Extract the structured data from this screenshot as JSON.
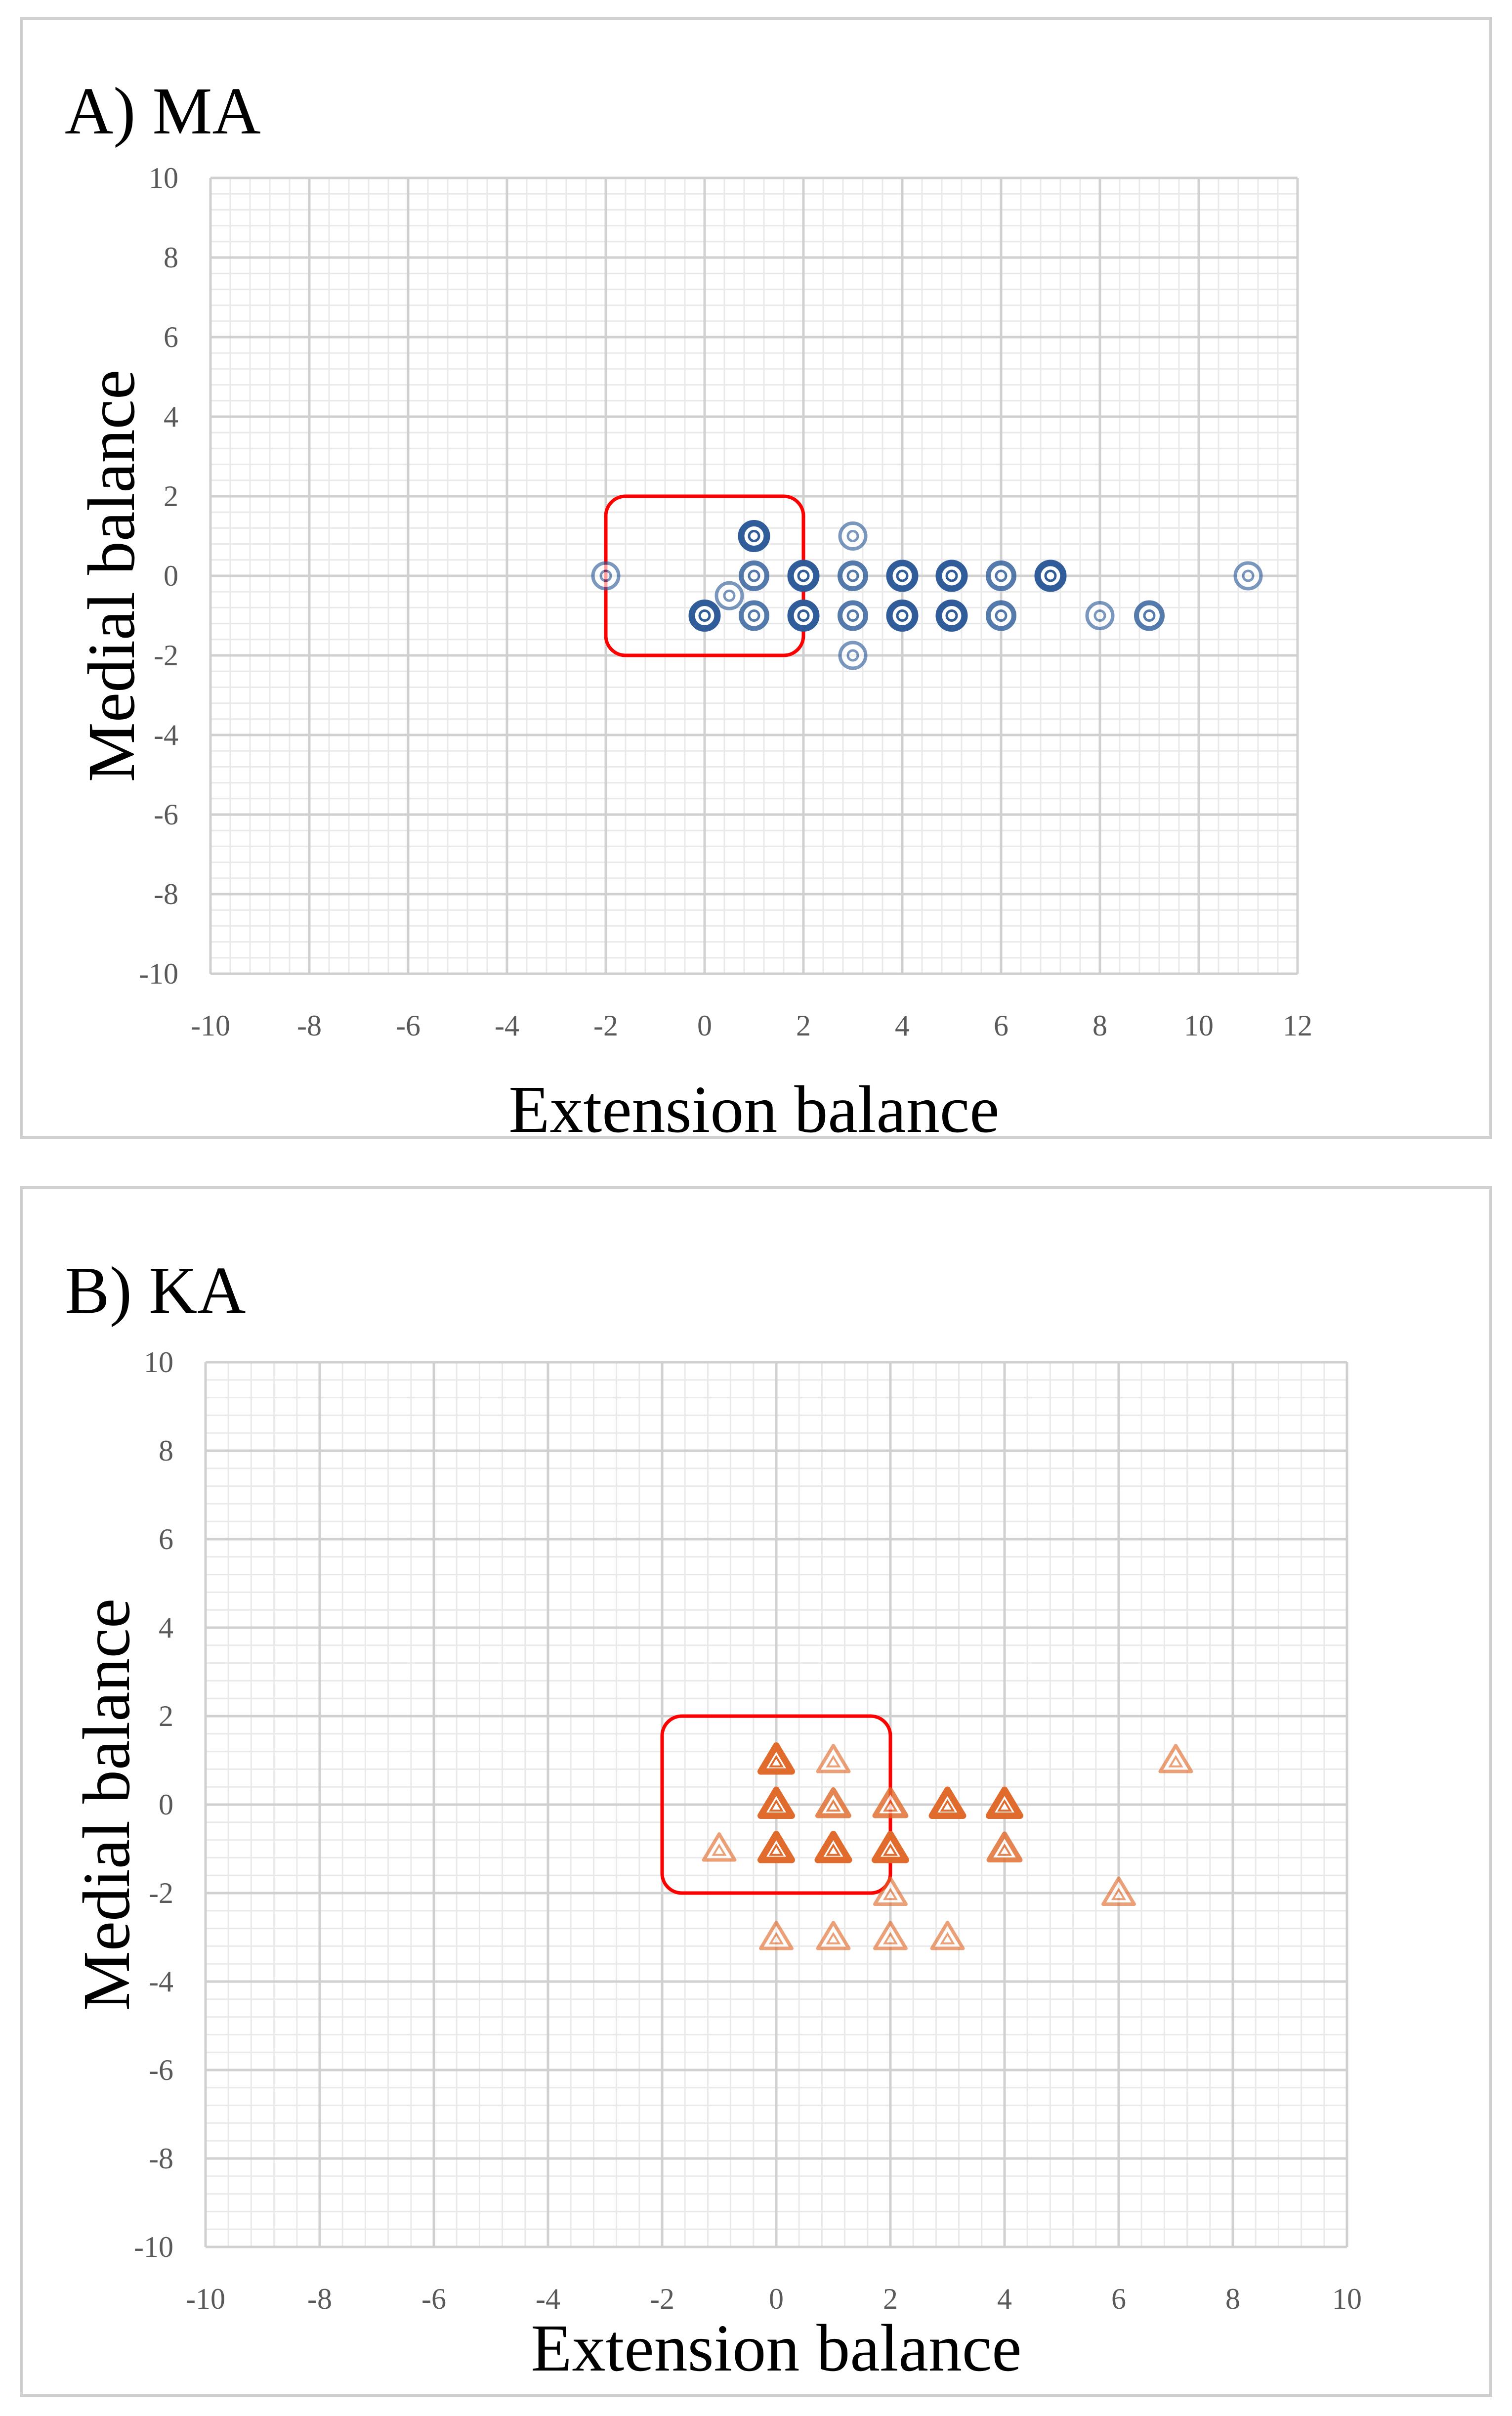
{
  "chart_data": [
    {
      "type": "scatter",
      "title": "A) MA",
      "xlabel": "Extension balance",
      "ylabel": "Medial balance",
      "xlim": [
        -10,
        12
      ],
      "ylim": [
        -10,
        10
      ],
      "xticks": [
        "-10",
        "-8",
        "-6",
        "-4",
        "-2",
        "0",
        "2",
        "4",
        "6",
        "8",
        "10",
        "12"
      ],
      "yticks": [
        "10",
        "8",
        "6",
        "4",
        "2",
        "0",
        "-2",
        "-4",
        "-6",
        "-8",
        "-10"
      ],
      "grid": true,
      "marker": "circle",
      "color": "#2e5c99",
      "highlight_box": {
        "x_range": [
          -2,
          2
        ],
        "y_range": [
          -2,
          2
        ],
        "color": "#ff0000"
      },
      "points": [
        {
          "x": -2,
          "y": 0,
          "count": 1
        },
        {
          "x": 0.5,
          "y": -0.5,
          "count": 1
        },
        {
          "x": 0,
          "y": -1,
          "count": 3
        },
        {
          "x": 1,
          "y": 1,
          "count": 3
        },
        {
          "x": 1,
          "y": 0,
          "count": 2
        },
        {
          "x": 1,
          "y": -1,
          "count": 2
        },
        {
          "x": 2,
          "y": 0,
          "count": 3
        },
        {
          "x": 2,
          "y": -1,
          "count": 3
        },
        {
          "x": 3,
          "y": 1,
          "count": 1
        },
        {
          "x": 3,
          "y": 0,
          "count": 2
        },
        {
          "x": 3,
          "y": -1,
          "count": 2
        },
        {
          "x": 3,
          "y": -2,
          "count": 1
        },
        {
          "x": 4,
          "y": 0,
          "count": 3
        },
        {
          "x": 4,
          "y": -1,
          "count": 3
        },
        {
          "x": 5,
          "y": 0,
          "count": 3
        },
        {
          "x": 5,
          "y": -1,
          "count": 3
        },
        {
          "x": 6,
          "y": 0,
          "count": 2
        },
        {
          "x": 6,
          "y": -1,
          "count": 2
        },
        {
          "x": 7,
          "y": 0,
          "count": 3
        },
        {
          "x": 8,
          "y": -1,
          "count": 1
        },
        {
          "x": 9,
          "y": -1,
          "count": 2
        },
        {
          "x": 11,
          "y": 0,
          "count": 1
        }
      ]
    },
    {
      "type": "scatter",
      "title": "B) KA",
      "xlabel": "Extension balance",
      "ylabel": "Medial balance",
      "xlim": [
        -10,
        10
      ],
      "ylim": [
        -10,
        10
      ],
      "xticks": [
        "-10",
        "-8",
        "-6",
        "-4",
        "-2",
        "0",
        "2",
        "4",
        "6",
        "8",
        "10"
      ],
      "yticks": [
        "10",
        "8",
        "6",
        "4",
        "2",
        "0",
        "-2",
        "-4",
        "-6",
        "-8",
        "-10"
      ],
      "grid": true,
      "marker": "triangle",
      "color": "#e06a2a",
      "highlight_box": {
        "x_range": [
          -2,
          2
        ],
        "y_range": [
          -2,
          2
        ],
        "color": "#ff0000"
      },
      "points": [
        {
          "x": -1,
          "y": -1,
          "count": 1
        },
        {
          "x": 0,
          "y": 1,
          "count": 3
        },
        {
          "x": 0,
          "y": 0,
          "count": 3
        },
        {
          "x": 0,
          "y": -1,
          "count": 3
        },
        {
          "x": 0,
          "y": -3,
          "count": 1
        },
        {
          "x": 1,
          "y": 1,
          "count": 1
        },
        {
          "x": 1,
          "y": 0,
          "count": 2
        },
        {
          "x": 1,
          "y": -1,
          "count": 3
        },
        {
          "x": 1,
          "y": -3,
          "count": 1
        },
        {
          "x": 2,
          "y": 0,
          "count": 2
        },
        {
          "x": 2,
          "y": -1,
          "count": 3
        },
        {
          "x": 2,
          "y": -2,
          "count": 1
        },
        {
          "x": 2,
          "y": -3,
          "count": 1
        },
        {
          "x": 3,
          "y": 0,
          "count": 3
        },
        {
          "x": 3,
          "y": -3,
          "count": 1
        },
        {
          "x": 4,
          "y": 0,
          "count": 3
        },
        {
          "x": 4,
          "y": -1,
          "count": 2
        },
        {
          "x": 6,
          "y": -2,
          "count": 1
        },
        {
          "x": 7,
          "y": 1,
          "count": 1
        }
      ]
    }
  ]
}
